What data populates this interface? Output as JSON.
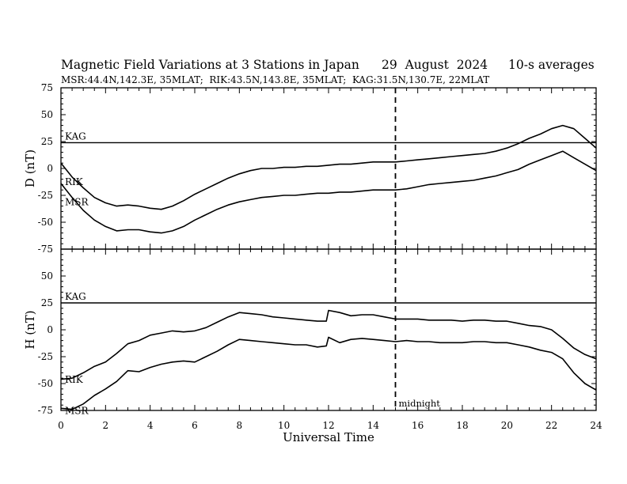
{
  "header": {
    "title": "Magnetic Field Variations at 3 Stations in Japan",
    "date": "29  August  2024",
    "averaging": "10-s averages",
    "stations": "MSR:44.4N,142.3E, 35MLAT;  RIK:43.5N,143.8E, 35MLAT;  KAG:31.5N,130.7E, 22MLAT"
  },
  "chart_data": [
    {
      "type": "line",
      "panel": "D",
      "ylabel": "D (nT)",
      "xlabel": "Universal Time",
      "xlim": [
        0,
        24
      ],
      "ylim": [
        -75,
        75
      ],
      "yticks": [
        75,
        50,
        25,
        0,
        -25,
        -50,
        -75
      ],
      "xticks": [
        0,
        2,
        4,
        6,
        8,
        10,
        12,
        14,
        16,
        18,
        20,
        22,
        24
      ],
      "series": [
        {
          "name": "KAG",
          "x": [
            0,
            24
          ],
          "y": [
            24,
            24
          ]
        },
        {
          "name": "RIK",
          "x": [
            0,
            0.5,
            1,
            1.5,
            2,
            2.5,
            3,
            3.5,
            4,
            4.5,
            5,
            5.5,
            6,
            6.5,
            7,
            7.5,
            8,
            8.5,
            9,
            9.5,
            10,
            10.5,
            11,
            11.5,
            12,
            12.5,
            13,
            13.5,
            14,
            14.5,
            15,
            15.5,
            16,
            16.5,
            17,
            17.5,
            18,
            18.5,
            19,
            19.5,
            20,
            20.5,
            21,
            21.5,
            22,
            22.5,
            23,
            23.5,
            24
          ],
          "y": [
            5,
            -8,
            -18,
            -27,
            -32,
            -35,
            -34,
            -35,
            -37,
            -38,
            -35,
            -30,
            -24,
            -19,
            -14,
            -9,
            -5,
            -2,
            0,
            0,
            1,
            1,
            2,
            2,
            3,
            4,
            4,
            5,
            6,
            6,
            6,
            7,
            8,
            9,
            10,
            11,
            12,
            13,
            14,
            16,
            19,
            23,
            28,
            32,
            37,
            40,
            37,
            28,
            19
          ]
        },
        {
          "name": "MSR",
          "x": [
            0,
            0.5,
            1,
            1.5,
            2,
            2.5,
            3,
            3.5,
            4,
            4.5,
            5,
            5.5,
            6,
            6.5,
            7,
            7.5,
            8,
            8.5,
            9,
            9.5,
            10,
            10.5,
            11,
            11.5,
            12,
            12.5,
            13,
            13.5,
            14,
            14.5,
            15,
            15.5,
            16,
            16.5,
            17,
            17.5,
            18,
            18.5,
            19,
            19.5,
            20,
            20.5,
            21,
            21.5,
            22,
            22.5,
            23,
            23.5,
            24
          ],
          "y": [
            -14,
            -27,
            -39,
            -48,
            -54,
            -58,
            -57,
            -57,
            -59,
            -60,
            -58,
            -54,
            -48,
            -43,
            -38,
            -34,
            -31,
            -29,
            -27,
            -26,
            -25,
            -25,
            -24,
            -23,
            -23,
            -22,
            -22,
            -21,
            -20,
            -20,
            -20,
            -19,
            -17,
            -15,
            -14,
            -13,
            -12,
            -11,
            -9,
            -7,
            -4,
            -1,
            4,
            8,
            12,
            16,
            10,
            4,
            -2
          ]
        }
      ]
    },
    {
      "type": "line",
      "panel": "H",
      "ylabel": "H (nT)",
      "xlabel": "Universal Time",
      "xlim": [
        0,
        24
      ],
      "ylim": [
        -75,
        75
      ],
      "yticks": [
        75,
        50,
        25,
        0,
        -25,
        -50,
        -75
      ],
      "xticks": [
        0,
        2,
        4,
        6,
        8,
        10,
        12,
        14,
        16,
        18,
        20,
        22,
        24
      ],
      "annotation": {
        "text": "midnight",
        "x": 15
      },
      "series": [
        {
          "name": "KAG",
          "x": [
            0,
            24
          ],
          "y": [
            25,
            25
          ]
        },
        {
          "name": "RIK",
          "x": [
            0,
            0.5,
            1,
            1.5,
            2,
            2.5,
            3,
            3.5,
            4,
            4.5,
            5,
            5.5,
            6,
            6.5,
            7,
            7.5,
            8,
            8.5,
            9,
            9.5,
            10,
            10.5,
            11,
            11.5,
            11.9,
            12,
            12.5,
            13,
            13.5,
            14,
            14.5,
            15,
            15.5,
            16,
            16.5,
            17,
            17.5,
            18,
            18.5,
            19,
            19.5,
            20,
            20.5,
            21,
            21.5,
            22,
            22.5,
            23,
            23.5,
            24
          ],
          "y": [
            -46,
            -45,
            -40,
            -34,
            -30,
            -22,
            -13,
            -10,
            -5,
            -3,
            -1,
            -2,
            -1,
            2,
            7,
            12,
            16,
            15,
            14,
            12,
            11,
            10,
            9,
            8,
            8,
            18,
            16,
            13,
            14,
            14,
            12,
            10,
            10,
            10,
            9,
            9,
            9,
            8,
            9,
            9,
            8,
            8,
            6,
            4,
            3,
            0,
            -8,
            -17,
            -23,
            -27
          ]
        },
        {
          "name": "MSR",
          "x": [
            0,
            0.5,
            1,
            1.5,
            2,
            2.5,
            3,
            3.5,
            4,
            4.5,
            5,
            5.5,
            6,
            6.5,
            7,
            7.5,
            8,
            8.5,
            9,
            9.5,
            10,
            10.5,
            11,
            11.5,
            11.9,
            12,
            12.5,
            13,
            13.5,
            14,
            14.5,
            15,
            15.5,
            16,
            16.5,
            17,
            17.5,
            18,
            18.5,
            19,
            19.5,
            20,
            20.5,
            21,
            21.5,
            22,
            22.5,
            23,
            23.5,
            24
          ],
          "y": [
            -73,
            -74,
            -69,
            -61,
            -55,
            -48,
            -38,
            -39,
            -35,
            -32,
            -30,
            -29,
            -30,
            -25,
            -20,
            -14,
            -9,
            -10,
            -11,
            -12,
            -13,
            -14,
            -14,
            -16,
            -15,
            -7,
            -12,
            -9,
            -8,
            -9,
            -10,
            -11,
            -10,
            -11,
            -11,
            -12,
            -12,
            -12,
            -11,
            -11,
            -12,
            -12,
            -14,
            -16,
            -19,
            -21,
            -27,
            -40,
            -50,
            -56
          ]
        }
      ]
    }
  ]
}
